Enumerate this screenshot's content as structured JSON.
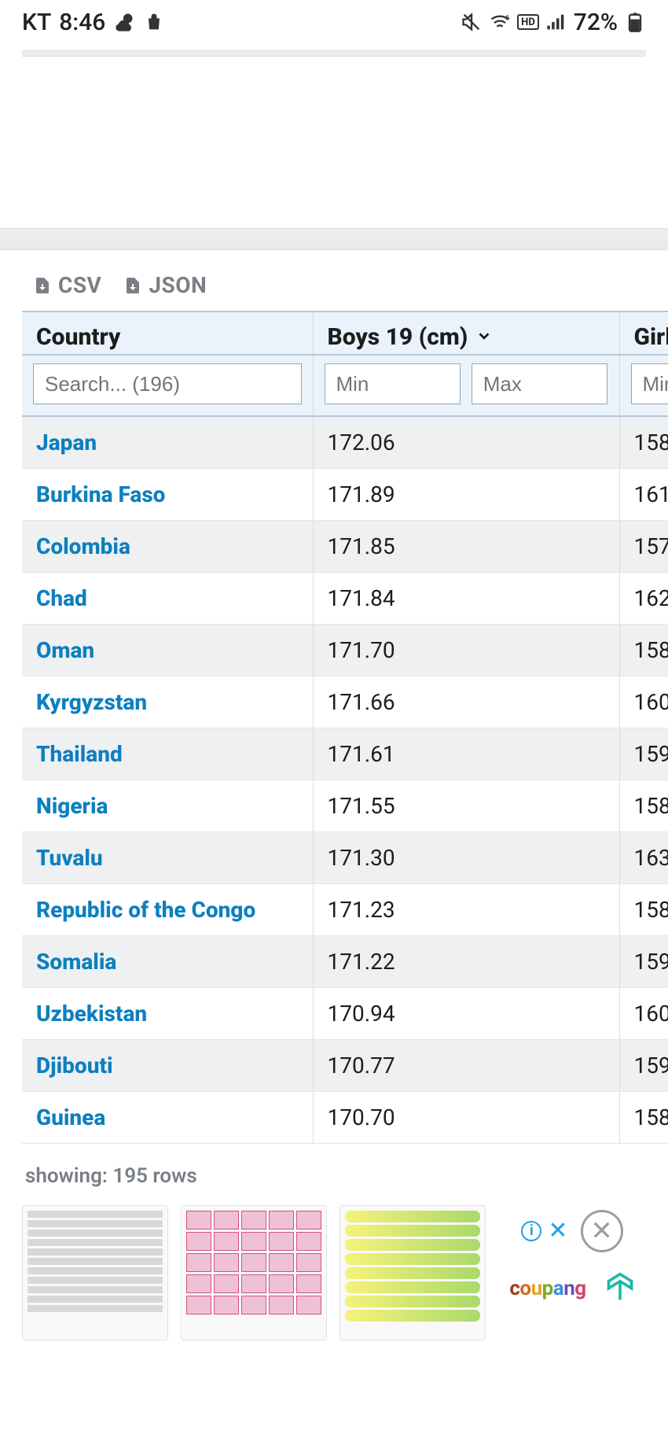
{
  "status": {
    "carrier": "KT",
    "time": "8:46",
    "battery": "72%"
  },
  "export": {
    "csv": "CSV",
    "json": "JSON"
  },
  "table": {
    "headers": {
      "country": "Country",
      "boys": "Boys 19 (cm)",
      "girls": "Girl"
    },
    "filters": {
      "search_placeholder": "Search... (196)",
      "min": "Min",
      "max": "Max",
      "girls_min": "Min"
    },
    "rows": [
      {
        "country": "Japan",
        "boys": "172.06",
        "girls": "158"
      },
      {
        "country": "Burkina Faso",
        "boys": "171.89",
        "girls": "161"
      },
      {
        "country": "Colombia",
        "boys": "171.85",
        "girls": "157"
      },
      {
        "country": "Chad",
        "boys": "171.84",
        "girls": "162"
      },
      {
        "country": "Oman",
        "boys": "171.70",
        "girls": "158"
      },
      {
        "country": "Kyrgyzstan",
        "boys": "171.66",
        "girls": "160"
      },
      {
        "country": "Thailand",
        "boys": "171.61",
        "girls": "159"
      },
      {
        "country": "Nigeria",
        "boys": "171.55",
        "girls": "158"
      },
      {
        "country": "Tuvalu",
        "boys": "171.30",
        "girls": "163"
      },
      {
        "country": "Republic of the Congo",
        "boys": "171.23",
        "girls": "158"
      },
      {
        "country": "Somalia",
        "boys": "171.22",
        "girls": "159"
      },
      {
        "country": "Uzbekistan",
        "boys": "170.94",
        "girls": "160"
      },
      {
        "country": "Djibouti",
        "boys": "170.77",
        "girls": "159"
      },
      {
        "country": "Guinea",
        "boys": "170.70",
        "girls": "158"
      }
    ],
    "showing": "showing: 195 rows"
  },
  "ad": {
    "brand_letters": [
      "c",
      "o",
      "u",
      "p",
      "a",
      "n",
      "g"
    ]
  },
  "colors": {
    "header_bg": "#eaf3fb",
    "row_alt": "#eef0f1",
    "link": "#0d7fbf",
    "muted": "#7a7f86",
    "border": "#b9c7d4"
  }
}
